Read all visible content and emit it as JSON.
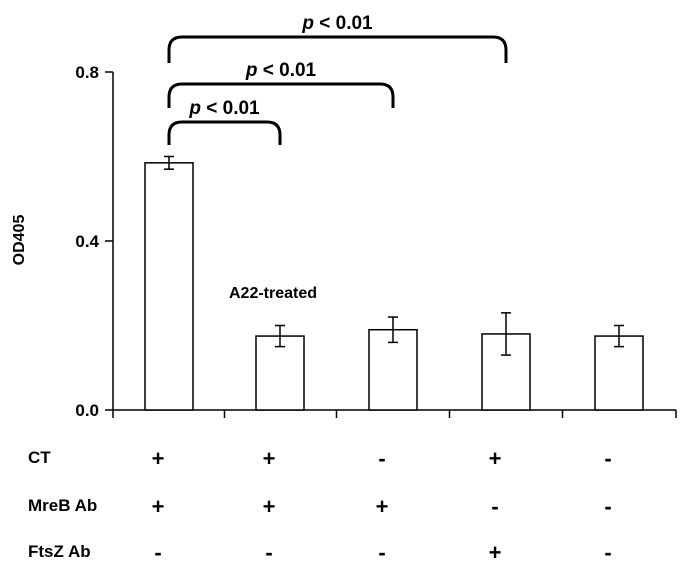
{
  "chart_data": {
    "type": "bar",
    "ylabel": "OD405",
    "ylim": [
      0,
      0.8
    ],
    "yticks": [
      "0.0",
      "0.4",
      "0.8"
    ],
    "ytick_values": [
      0,
      0.4,
      0.8
    ],
    "values": [
      0.585,
      0.175,
      0.19,
      0.18,
      0.175
    ],
    "errors": [
      0.015,
      0.025,
      0.03,
      0.05,
      0.025
    ],
    "bar_fill": "#ffffff",
    "bar_stroke": "#000000",
    "annotation": "A22-treated",
    "significance": [
      {
        "p_label": "< 0.01",
        "from": 0,
        "to": 1
      },
      {
        "p_label": "< 0.01",
        "from": 0,
        "to": 2
      },
      {
        "p_label": "< 0.01",
        "from": 0,
        "to": 3
      }
    ],
    "p_symbol": "p",
    "conditions": [
      {
        "label": "CT",
        "signs": [
          "+",
          "+",
          "-",
          "+",
          "-"
        ]
      },
      {
        "label": "MreB Ab",
        "signs": [
          "+",
          "+",
          "+",
          "-",
          "-"
        ]
      },
      {
        "label": "FtsZ Ab",
        "signs": [
          "-",
          "-",
          "-",
          "+",
          "-"
        ]
      }
    ]
  }
}
